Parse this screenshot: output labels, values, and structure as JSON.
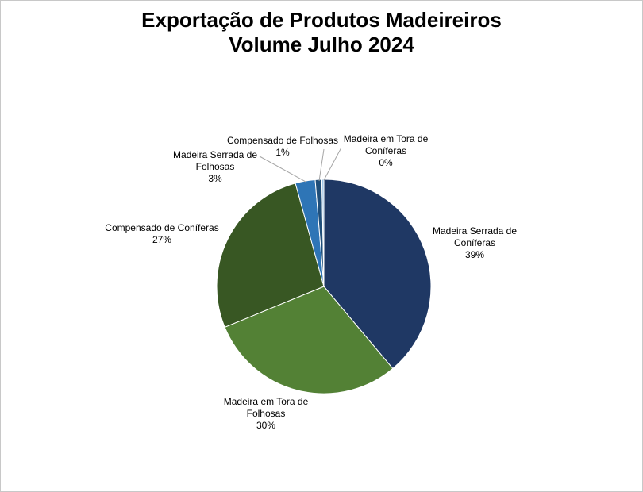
{
  "chart_data": {
    "type": "pie",
    "title_lines": [
      "Exportação de Produtos Madeireiros",
      "Volume Julho 2024"
    ],
    "start_angle_deg": 0,
    "direction": "clockwise",
    "slices": [
      {
        "name": "Madeira Serrada de Coníferas",
        "value": 39,
        "label_lines": [
          "Madeira Serrada de",
          "Coníferas",
          "39%"
        ],
        "color": "#1f3864"
      },
      {
        "name": "Madeira em Tora de Folhosas",
        "value": 30,
        "label_lines": [
          "Madeira em Tora de",
          "Folhosas",
          "30%"
        ],
        "color": "#538135"
      },
      {
        "name": "Compensado de Coníferas",
        "value": 27,
        "label_lines": [
          "Compensado de Coníferas",
          "27%"
        ],
        "color": "#385723"
      },
      {
        "name": "Madeira Serrada de Folhosas",
        "value": 3,
        "label_lines": [
          "Madeira Serrada de",
          "Folhosas",
          "3%"
        ],
        "color": "#2e75b6"
      },
      {
        "name": "Compensado de Folhosas",
        "value": 1,
        "label_lines": [
          "Compensado de Folhosas",
          "1%"
        ],
        "color": "#1f4e79"
      },
      {
        "name": "Madeira em Tora de Coníferas",
        "value": 0.3,
        "label_lines": [
          "Madeira em Tora de",
          "Coníferas",
          "0%"
        ],
        "color": "#9dc3e6"
      }
    ]
  }
}
